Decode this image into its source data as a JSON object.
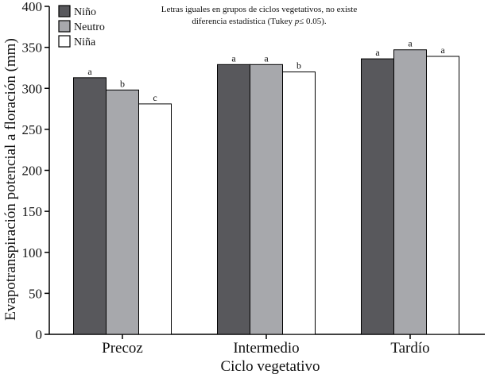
{
  "chart_data": {
    "type": "bar",
    "xlabel": "Ciclo vegetativo",
    "ylabel": "Evapotranspiración potencial a floración (mm)",
    "ylim": [
      0,
      400
    ],
    "yticks": [
      0,
      50,
      100,
      150,
      200,
      250,
      300,
      350,
      400
    ],
    "categories": [
      "Precoz",
      "Intermedio",
      "Tardío"
    ],
    "series": [
      {
        "name": "Niño",
        "values": [
          313,
          329,
          336
        ],
        "letters": [
          "a",
          "a",
          "a"
        ],
        "color": "#58585c"
      },
      {
        "name": "Neutro",
        "values": [
          298,
          329,
          347
        ],
        "letters": [
          "b",
          "a",
          "a"
        ],
        "color": "#a7a8ac"
      },
      {
        "name": "Niña",
        "values": [
          281,
          320,
          339
        ],
        "letters": [
          "c",
          "b",
          "a"
        ],
        "color": "#ffffff"
      }
    ],
    "legend_position": "top-left",
    "grid": false,
    "annotation": {
      "line1": "Letras iguales en grupos de ciclos vegetativos, no existe",
      "line2_prefix": "diferencia estadística (Tukey ",
      "line2_p": "p",
      "line2_suffix": "≤ 0.05)."
    }
  }
}
